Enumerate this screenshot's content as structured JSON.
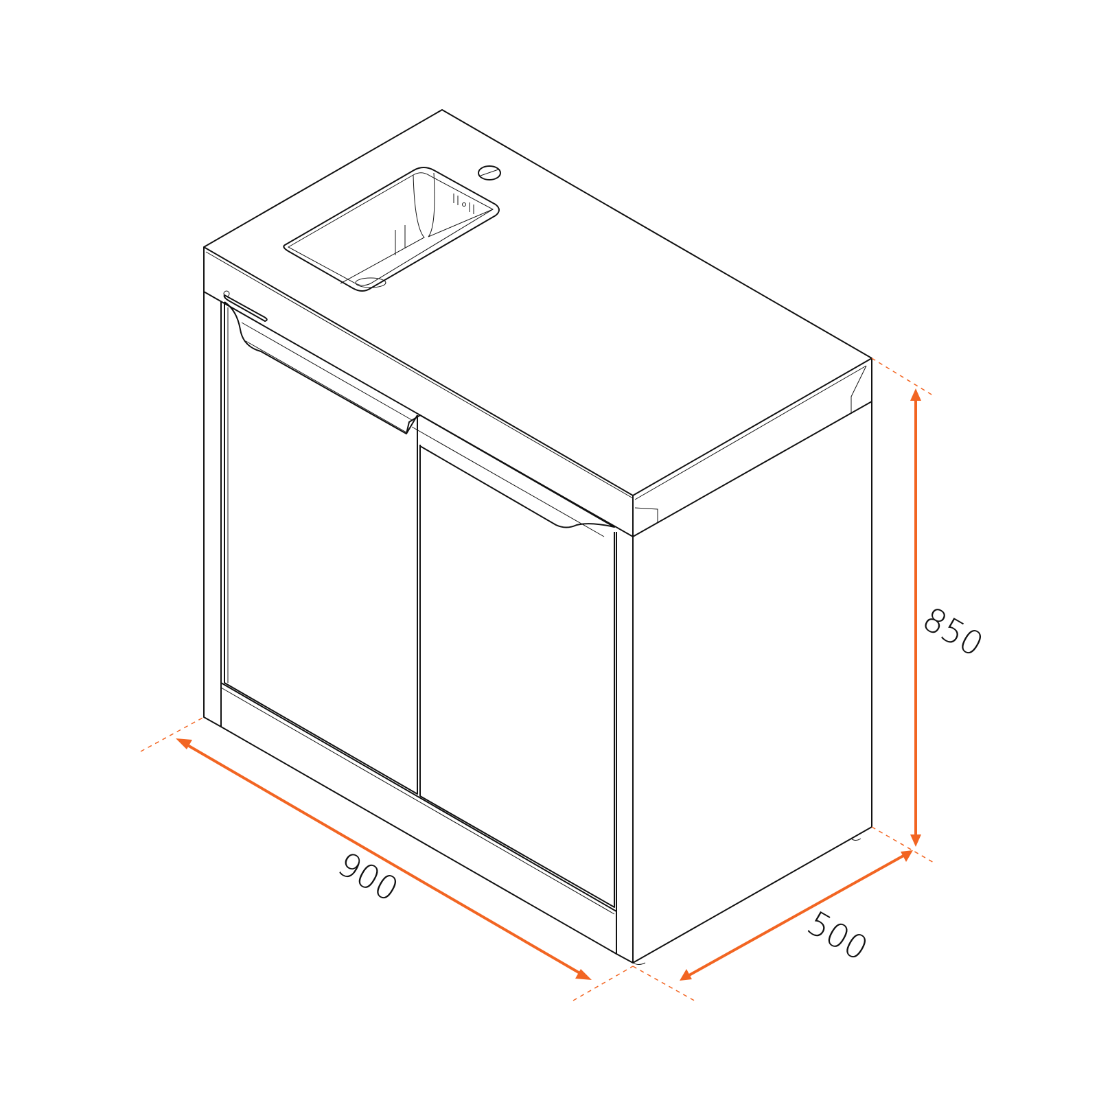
{
  "dimensions": {
    "width": "900",
    "depth": "500",
    "height": "850"
  },
  "colors": {
    "dimension": "#f26522",
    "line": "#111111"
  }
}
